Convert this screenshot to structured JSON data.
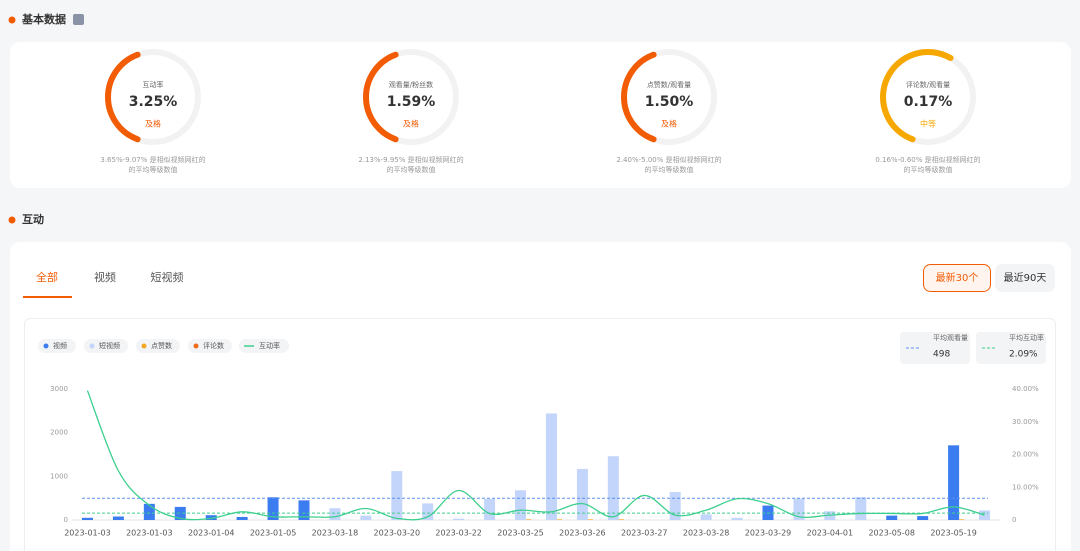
{
  "sections": [
    "基本数据",
    "互动"
  ],
  "gauges": [
    {
      "label": "互动率",
      "value": "3.25%",
      "rating": "及格",
      "desc": [
        "3.65%-9.07% 是相似视频网红的",
        "的平均等级数值"
      ]
    },
    {
      "label": "观看量/粉丝数",
      "value": "1.59%",
      "rating": "及格",
      "desc": [
        "2.13%-9.95% 是相似视频网红的",
        "的平均等级数值"
      ]
    },
    {
      "label": "点赞数/观看量",
      "value": "1.50%",
      "rating": "及格",
      "desc": [
        "2.40%-5.00% 是相似视频网红的",
        "的平均等级数值"
      ]
    },
    {
      "label": "评论数/观看量",
      "value": "0.17%",
      "rating": "中等",
      "desc": [
        "0.16%-0.60% 是相似视频网红的",
        "的平均等级数值"
      ]
    }
  ],
  "tabs": [
    "全部",
    "视频",
    "短视频"
  ],
  "buttons": [
    "最新30个",
    "最近90天"
  ],
  "chart_data": {
    "type": "bar",
    "categories": [
      "2023-01-03",
      null,
      "2023-01-03",
      null,
      "2023-01-04",
      null,
      "2023-01-05",
      null,
      "2023-03-18",
      null,
      "2023-03-20",
      null,
      "2023-03-22",
      null,
      "2023-03-25",
      null,
      "2023-03-26",
      null,
      "2023-03-27",
      null,
      "2023-03-28",
      null,
      "2023-03-29",
      null,
      "2023-04-01",
      null,
      "2023-05-08",
      null,
      "2023-05-19",
      null
    ],
    "series": [
      {
        "name": "视频",
        "type": "bar",
        "color": "#3b7cf0",
        "values": [
          50,
          80,
          370,
          300,
          110,
          70,
          520,
          450,
          null,
          null,
          null,
          null,
          null,
          null,
          null,
          null,
          null,
          null,
          null,
          null,
          null,
          null,
          330,
          null,
          null,
          null,
          100,
          90,
          1710,
          null
        ]
      },
      {
        "name": "短视频",
        "type": "bar",
        "color": "#c3d5fb",
        "values": [
          null,
          null,
          null,
          null,
          null,
          null,
          null,
          null,
          270,
          100,
          1120,
          380,
          30,
          480,
          680,
          2440,
          1170,
          1460,
          null,
          640,
          130,
          50,
          null,
          490,
          200,
          520,
          null,
          null,
          null,
          220
        ]
      },
      {
        "name": "点赞数",
        "type": "bar",
        "color": "#f5a623",
        "values": [
          null,
          null,
          null,
          null,
          null,
          null,
          null,
          null,
          null,
          null,
          null,
          null,
          null,
          null,
          15,
          15,
          15,
          15,
          null,
          null,
          null,
          null,
          null,
          null,
          null,
          null,
          null,
          null,
          15,
          null
        ]
      },
      {
        "name": "评论数",
        "type": "bar",
        "color": "#f06a1a",
        "values": [
          null,
          null,
          null,
          null,
          null,
          null,
          null,
          null,
          null,
          null,
          null,
          null,
          null,
          null,
          null,
          null,
          null,
          null,
          null,
          null,
          null,
          null,
          null,
          null,
          null,
          null,
          null,
          null,
          null,
          null
        ]
      },
      {
        "name": "互动率",
        "type": "line",
        "axis": "y2",
        "color": "#3ecf8e",
        "values": [
          39.5,
          15,
          4.5,
          0.5,
          0.5,
          2.5,
          1,
          1,
          1,
          3.5,
          0.5,
          1,
          9,
          2,
          3,
          2.5,
          5,
          1,
          7.5,
          1.5,
          3,
          6.5,
          5,
          1,
          1.5,
          2,
          2,
          2,
          4,
          1.5
        ]
      }
    ],
    "ylim": [
      0,
      3000
    ],
    "yticks": [
      0,
      1000,
      2000,
      3000
    ],
    "y2lim": [
      0,
      40
    ],
    "y2ticks": [
      0,
      {
        "value": 10,
        "label": "10.00%"
      },
      {
        "value": 20,
        "label": "20.00%"
      },
      {
        "value": 30,
        "label": "30.00%"
      },
      {
        "value": 40,
        "label": "40.00%"
      }
    ],
    "reference_lines": [
      {
        "name": "平均观看量",
        "value": 498,
        "axis": "y",
        "color": "#5b8ff0"
      },
      {
        "name": "平均互动率",
        "value": 2.09,
        "value_label": "2.09%",
        "axis": "y2",
        "color": "#3ecf8e"
      }
    ]
  }
}
